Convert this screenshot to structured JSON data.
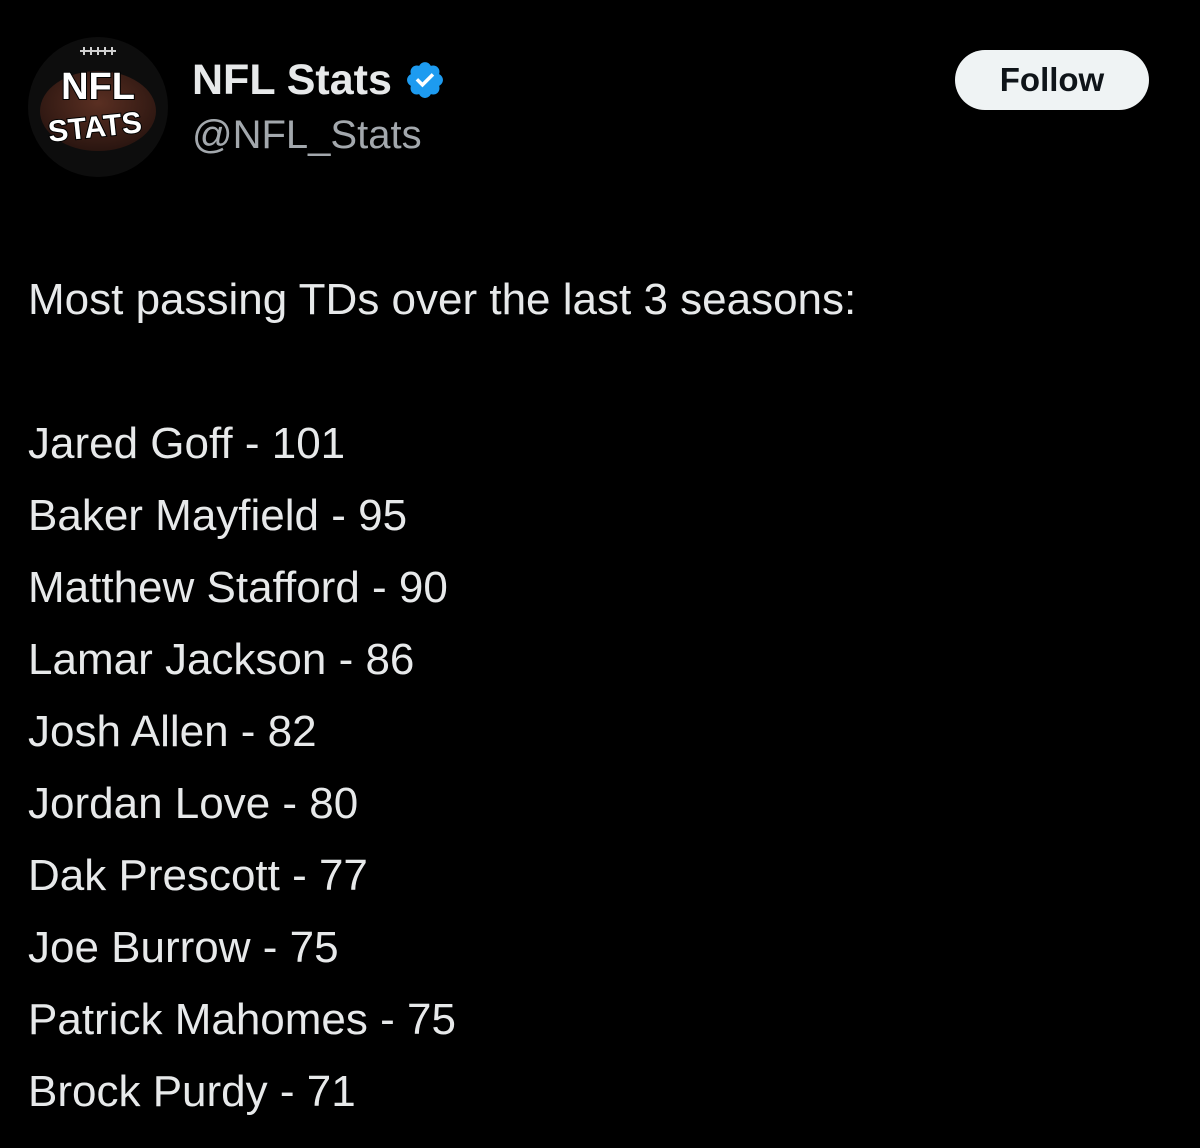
{
  "author": {
    "display_name": "NFL Stats",
    "handle": "@NFL_Stats",
    "verified": true,
    "avatar_text": [
      "NFL",
      "STATS"
    ],
    "verified_color": "#1d9bf0"
  },
  "actions": {
    "follow_label": "Follow"
  },
  "post": {
    "intro": "Most passing TDs over the last 3 seasons:",
    "lines": [
      "Jared Goff - 101",
      "Baker Mayfield - 95",
      "Matthew Stafford - 90",
      "Lamar Jackson - 86",
      "Josh Allen - 82",
      "Jordan Love - 80",
      "Dak Prescott - 77",
      "Joe Burrow - 75",
      "Patrick Mahomes - 75",
      "Brock Purdy - 71"
    ]
  },
  "colors": {
    "background": "#000000",
    "text": "#e7e9ea",
    "secondary_text": "#a3a8ad",
    "button_bg": "#eff3f4"
  }
}
